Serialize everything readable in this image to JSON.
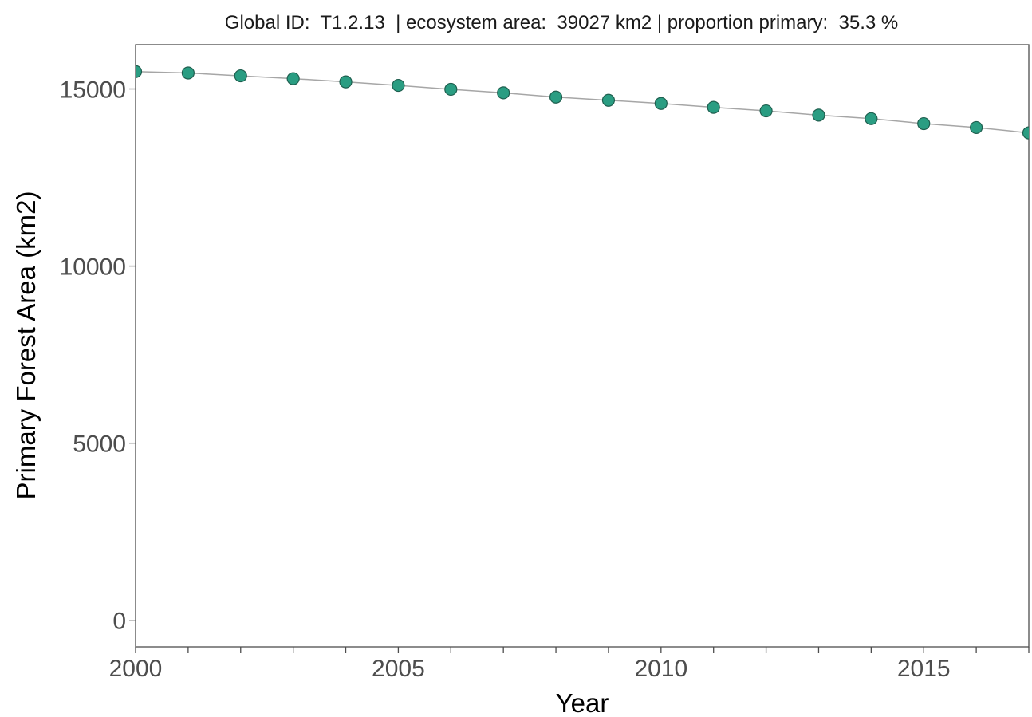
{
  "chart_data": {
    "type": "scatter",
    "title": "Global ID:  T1.2.13  | ecosystem area:  39027 km2 | proportion primary:  35.3 %",
    "xlabel": "Year",
    "ylabel": "Primary Forest Area (km2)",
    "xlim": [
      2000,
      2017
    ],
    "ylim": [
      -750,
      16250
    ],
    "x_ticks": [
      2000,
      2005,
      2010,
      2015
    ],
    "x_tick_labels": [
      "2000",
      "2005",
      "2010",
      "2015"
    ],
    "y_ticks": [
      0,
      5000,
      10000,
      15000
    ],
    "y_tick_labels": [
      "0",
      "5000",
      "10000",
      "15000"
    ],
    "grid": false,
    "colors": {
      "point_fill": "#2a9d82",
      "point_stroke": "#1f5f4f",
      "line": "#a6a6a6"
    },
    "series": [
      {
        "x": [
          2000,
          2001,
          2002,
          2003,
          2004,
          2005,
          2006,
          2007,
          2008,
          2009,
          2010,
          2011,
          2012,
          2013,
          2014,
          2015,
          2016,
          2017
        ],
        "y": [
          15490,
          15450,
          15370,
          15290,
          15200,
          15100,
          14990,
          14890,
          14770,
          14680,
          14590,
          14480,
          14380,
          14260,
          14160,
          14020,
          13910,
          13760
        ]
      }
    ]
  }
}
